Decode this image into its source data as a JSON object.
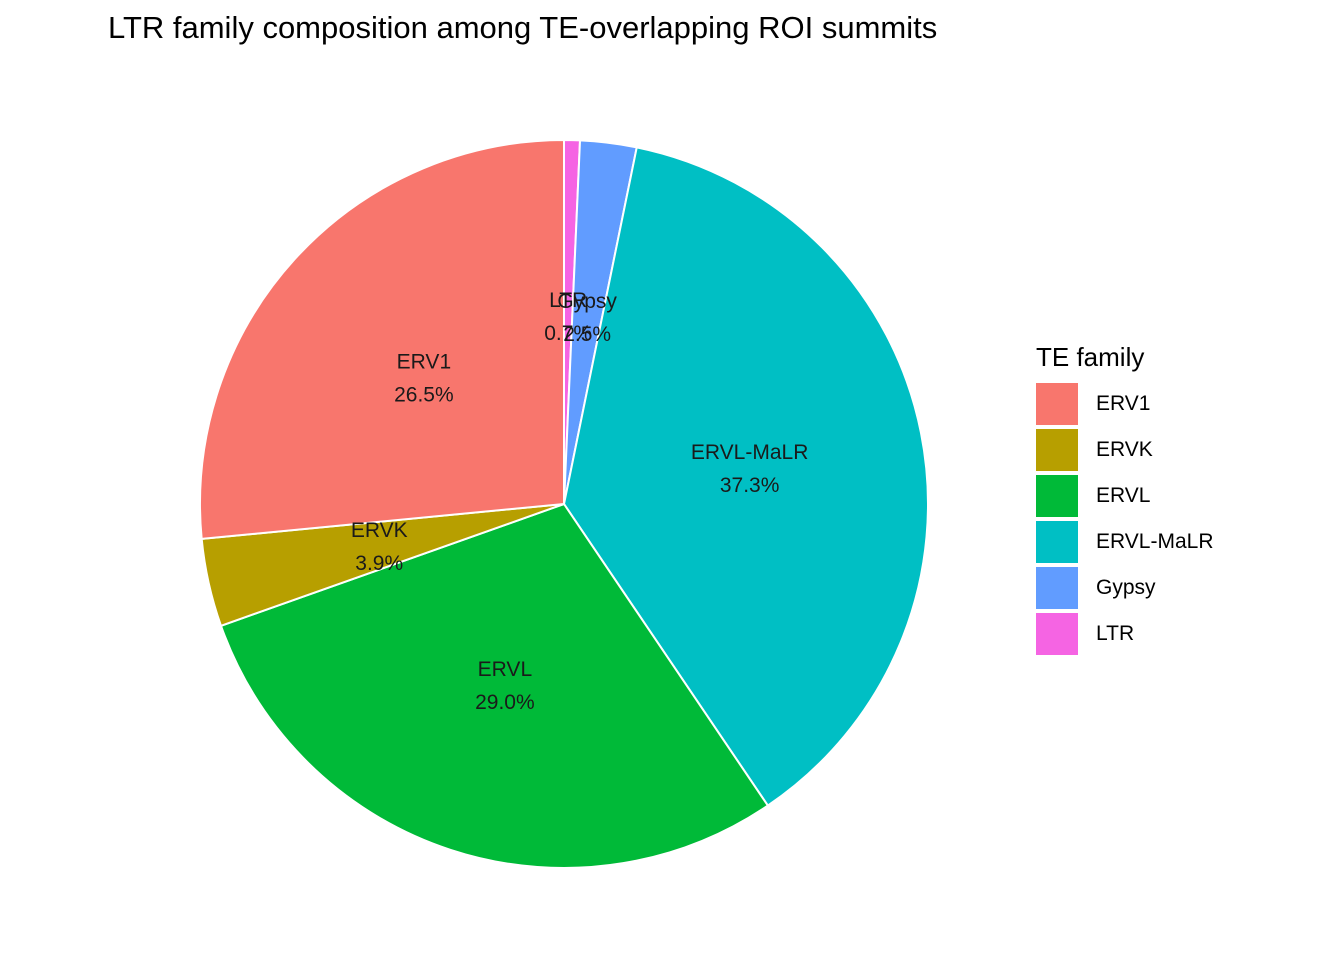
{
  "chart_data": {
    "type": "pie",
    "title": "LTR family composition among TE-overlapping ROI summits",
    "legend": {
      "title": "TE family",
      "placement": "right"
    },
    "direction": "clockwise from top",
    "slices": [
      {
        "name": "LTR",
        "value": 0.7,
        "label": "0.7%",
        "color": "#F564E3"
      },
      {
        "name": "Gypsy",
        "value": 2.5,
        "label": "2.5%",
        "color": "#619CFF"
      },
      {
        "name": "ERVL-MaLR",
        "value": 37.3,
        "label": "37.3%",
        "color": "#00BFC4"
      },
      {
        "name": "ERVL",
        "value": 29.0,
        "label": "29.0%",
        "color": "#00BA38"
      },
      {
        "name": "ERVK",
        "value": 3.9,
        "label": "3.9%",
        "color": "#B79F00"
      },
      {
        "name": "ERV1",
        "value": 26.5,
        "label": "26.5%",
        "color": "#F8766D"
      }
    ],
    "legend_order": [
      "ERV1",
      "ERVK",
      "ERVL",
      "ERVL-MaLR",
      "Gypsy",
      "LTR"
    ]
  }
}
